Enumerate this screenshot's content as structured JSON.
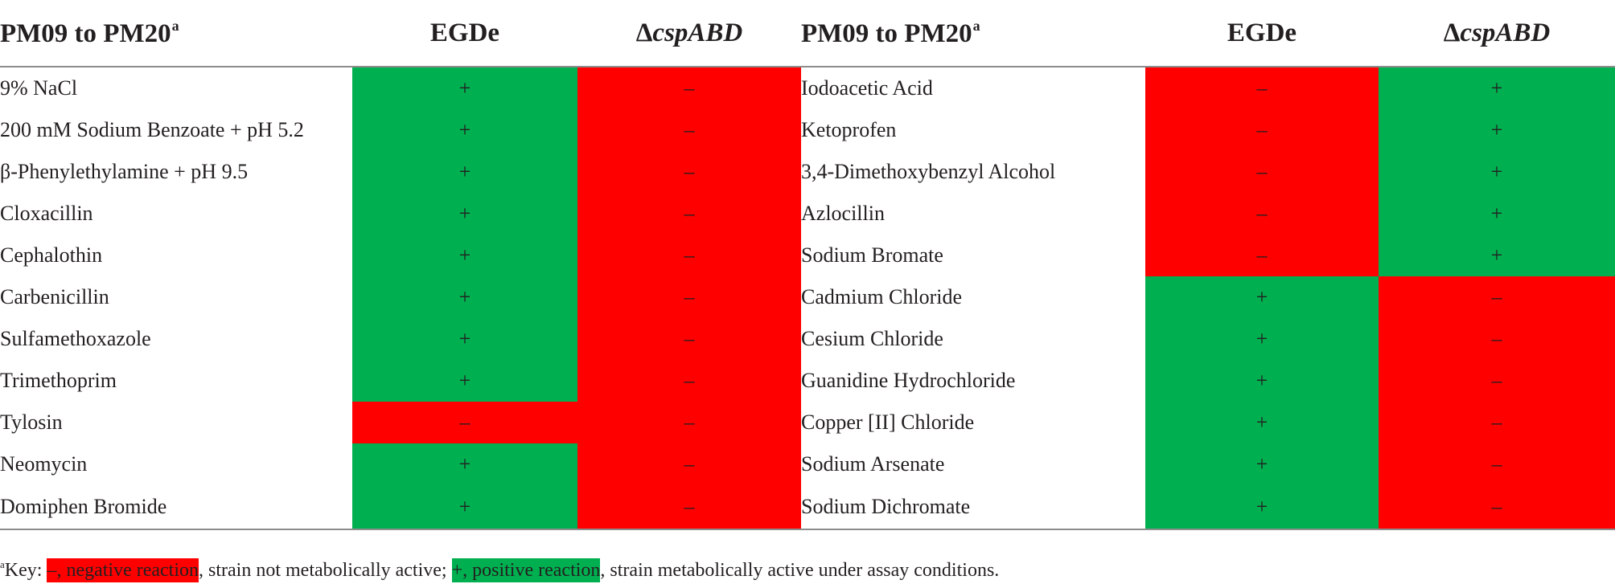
{
  "table": {
    "headers": {
      "left_name": "PM09 to PM20",
      "left_name_sup": "a",
      "left_egde": "EGDe",
      "left_mut_delta": "Δ",
      "left_mut_gene": "cspABD",
      "right_name": "PM09 to PM20",
      "right_name_sup": "a",
      "right_egde": "EGDe",
      "right_mut_delta": "Δ",
      "right_mut_gene": "cspABD"
    },
    "rows": [
      {
        "left": {
          "name": "9% NaCl",
          "egde": "+",
          "mut": "–"
        },
        "right": {
          "name": "Iodoacetic Acid",
          "egde": "–",
          "mut": "+"
        }
      },
      {
        "left": {
          "name": "200 mM Sodium Benzoate + pH 5.2",
          "egde": "+",
          "mut": "–"
        },
        "right": {
          "name": "Ketoprofen",
          "egde": "–",
          "mut": "+"
        }
      },
      {
        "left": {
          "name": "β-Phenylethylamine + pH 9.5",
          "egde": "+",
          "mut": "–"
        },
        "right": {
          "name": "3,4-Dimethoxybenzyl Alcohol",
          "egde": "–",
          "mut": "+"
        }
      },
      {
        "left": {
          "name": "Cloxacillin",
          "egde": "+",
          "mut": "–"
        },
        "right": {
          "name": "Azlocillin",
          "egde": "–",
          "mut": "+"
        }
      },
      {
        "left": {
          "name": "Cephalothin",
          "egde": "+",
          "mut": "–"
        },
        "right": {
          "name": "Sodium Bromate",
          "egde": "–",
          "mut": "+"
        }
      },
      {
        "left": {
          "name": "Carbenicillin",
          "egde": "+",
          "mut": "–"
        },
        "right": {
          "name": "Cadmium Chloride",
          "egde": "+",
          "mut": "–"
        }
      },
      {
        "left": {
          "name": "Sulfamethoxazole",
          "egde": "+",
          "mut": "–"
        },
        "right": {
          "name": "Cesium Chloride",
          "egde": "+",
          "mut": "–"
        }
      },
      {
        "left": {
          "name": "Trimethoprim",
          "egde": "+",
          "mut": "–"
        },
        "right": {
          "name": "Guanidine Hydrochloride",
          "egde": "+",
          "mut": "–"
        }
      },
      {
        "left": {
          "name": "Tylosin",
          "egde": "–",
          "mut": "–"
        },
        "right": {
          "name": "Copper [II] Chloride",
          "egde": "+",
          "mut": "–"
        }
      },
      {
        "left": {
          "name": "Neomycin",
          "egde": "+",
          "mut": "–"
        },
        "right": {
          "name": "Sodium Arsenate",
          "egde": "+",
          "mut": "–"
        }
      },
      {
        "left": {
          "name": "Domiphen Bromide",
          "egde": "+",
          "mut": "–"
        },
        "right": {
          "name": "Sodium Dichromate",
          "egde": "+",
          "mut": "–"
        }
      }
    ]
  },
  "footnote": {
    "sup": "a",
    "prefix": "Key: ",
    "neg_key": "–, negative reaction",
    "neg_text": ", strain not metabolically active; ",
    "pos_key": "+, positive reaction",
    "pos_text": ", strain metabolically active under assay conditions."
  },
  "colors": {
    "positive": "#00b050",
    "negative": "#ff0000",
    "rule": "#8c8c8c"
  }
}
